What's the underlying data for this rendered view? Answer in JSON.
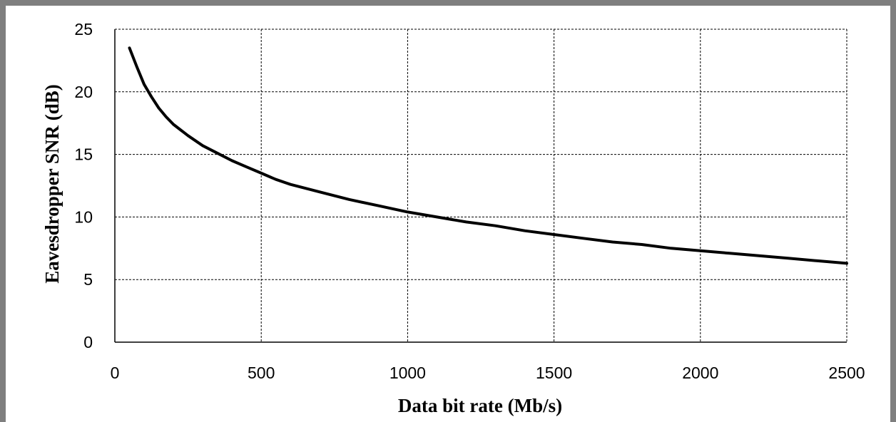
{
  "chart_data": {
    "type": "line",
    "title": "",
    "xlabel": "Data bit rate (Mb/s)",
    "ylabel": "Eavesdropper SNR (dB)",
    "xlim": [
      0,
      2500
    ],
    "ylim": [
      0,
      25
    ],
    "x_ticks": [
      0,
      500,
      1000,
      1500,
      2000,
      2500
    ],
    "y_ticks": [
      0,
      5,
      10,
      15,
      20,
      25
    ],
    "grid": true,
    "grid_style": "dashed",
    "legend": "none",
    "series": [
      {
        "color": "#000000",
        "x": [
          50,
          75,
          100,
          125,
          150,
          175,
          200,
          250,
          300,
          350,
          400,
          450,
          500,
          550,
          600,
          700,
          800,
          900,
          1000,
          1100,
          1200,
          1300,
          1400,
          1500,
          1600,
          1700,
          1800,
          1900,
          2000,
          2100,
          2200,
          2300,
          2400,
          2500
        ],
        "y": [
          23.5,
          22.0,
          20.6,
          19.6,
          18.7,
          18.0,
          17.4,
          16.5,
          15.7,
          15.1,
          14.5,
          14.0,
          13.5,
          13.0,
          12.6,
          12.0,
          11.4,
          10.9,
          10.4,
          10.0,
          9.6,
          9.3,
          8.9,
          8.6,
          8.3,
          8.0,
          7.8,
          7.5,
          7.3,
          7.1,
          6.9,
          6.7,
          6.5,
          6.3
        ]
      }
    ]
  }
}
